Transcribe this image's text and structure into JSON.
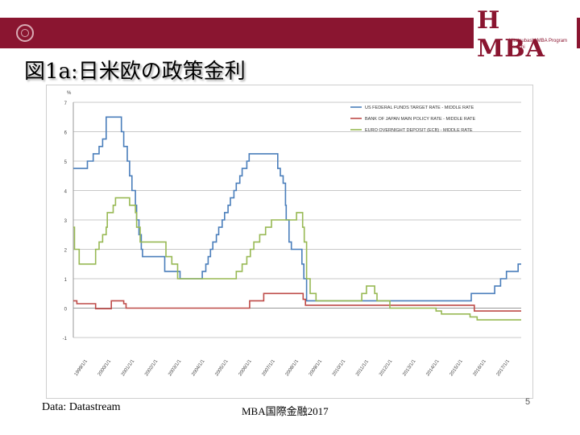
{
  "header": {
    "logo_main": "H MBA",
    "logo_sub1": "Hitotsubashi MBA Program",
    "logo_sub2": "Kenichi",
    "accent_color": "#8a1530"
  },
  "slide": {
    "title": "図1a:日米欧の政策金利"
  },
  "footer": {
    "source": "Data: Datastream",
    "center": "MBA国際金融2017",
    "page": "5"
  },
  "chart_data": {
    "type": "line",
    "ylabel": "%",
    "ylim": [
      -1,
      7
    ],
    "yticks": [
      -1,
      0,
      1,
      2,
      3,
      4,
      5,
      6,
      7
    ],
    "xlim": [
      1999,
      2018.1
    ],
    "xticks": [
      "1999/1/1",
      "2000/1/1",
      "2001/1/1",
      "2002/1/1",
      "2003/1/1",
      "2004/1/1",
      "2005/1/1",
      "2006/1/1",
      "2007/1/1",
      "2008/1/1",
      "2009/1/1",
      "2010/1/1",
      "2011/1/1",
      "2012/1/1",
      "2013/1/1",
      "2014/1/1",
      "2015/1/1",
      "2016/1/1",
      "2017/1/1"
    ],
    "grid": true,
    "legend_position": "top-right",
    "series": [
      {
        "name": "US FEDERAL FUNDS TARGET RATE - MIDDLE RATE",
        "color": "#4a7ebb",
        "points": [
          [
            1999.0,
            4.75
          ],
          [
            1999.5,
            4.75
          ],
          [
            1999.6,
            5.0
          ],
          [
            1999.85,
            5.25
          ],
          [
            2000.1,
            5.5
          ],
          [
            2000.25,
            5.75
          ],
          [
            2000.4,
            6.5
          ],
          [
            2001.0,
            6.5
          ],
          [
            2001.05,
            6.0
          ],
          [
            2001.15,
            5.5
          ],
          [
            2001.3,
            5.0
          ],
          [
            2001.4,
            4.5
          ],
          [
            2001.5,
            4.0
          ],
          [
            2001.65,
            3.5
          ],
          [
            2001.7,
            3.0
          ],
          [
            2001.8,
            2.5
          ],
          [
            2001.9,
            2.0
          ],
          [
            2001.95,
            1.75
          ],
          [
            2002.85,
            1.75
          ],
          [
            2002.9,
            1.25
          ],
          [
            2003.5,
            1.25
          ],
          [
            2003.55,
            1.0
          ],
          [
            2004.45,
            1.0
          ],
          [
            2004.5,
            1.25
          ],
          [
            2004.65,
            1.5
          ],
          [
            2004.75,
            1.75
          ],
          [
            2004.85,
            2.0
          ],
          [
            2004.95,
            2.25
          ],
          [
            2005.1,
            2.5
          ],
          [
            2005.2,
            2.75
          ],
          [
            2005.35,
            3.0
          ],
          [
            2005.45,
            3.25
          ],
          [
            2005.6,
            3.5
          ],
          [
            2005.7,
            3.75
          ],
          [
            2005.85,
            4.0
          ],
          [
            2005.95,
            4.25
          ],
          [
            2006.1,
            4.5
          ],
          [
            2006.2,
            4.75
          ],
          [
            2006.4,
            5.0
          ],
          [
            2006.5,
            5.25
          ],
          [
            2007.7,
            5.25
          ],
          [
            2007.72,
            4.75
          ],
          [
            2007.83,
            4.5
          ],
          [
            2007.95,
            4.25
          ],
          [
            2008.05,
            3.5
          ],
          [
            2008.08,
            3.0
          ],
          [
            2008.2,
            2.25
          ],
          [
            2008.3,
            2.0
          ],
          [
            2008.75,
            1.5
          ],
          [
            2008.83,
            1.0
          ],
          [
            2008.95,
            0.25
          ],
          [
            2015.95,
            0.25
          ],
          [
            2015.97,
            0.5
          ],
          [
            2016.95,
            0.5
          ],
          [
            2016.97,
            0.75
          ],
          [
            2017.2,
            0.75
          ],
          [
            2017.22,
            1.0
          ],
          [
            2017.45,
            1.0
          ],
          [
            2017.47,
            1.25
          ],
          [
            2017.95,
            1.25
          ],
          [
            2017.97,
            1.5
          ],
          [
            2018.1,
            1.5
          ]
        ]
      },
      {
        "name": "BANK OF JAPAN MAIN POLICY RATE - MIDDLE RATE",
        "color": "#be4b48",
        "points": [
          [
            1999.0,
            0.25
          ],
          [
            1999.15,
            0.15
          ],
          [
            1999.9,
            0.15
          ],
          [
            1999.95,
            -0.02
          ],
          [
            2000.6,
            -0.02
          ],
          [
            2000.62,
            0.25
          ],
          [
            2001.1,
            0.25
          ],
          [
            2001.15,
            0.15
          ],
          [
            2001.25,
            0.0
          ],
          [
            2006.5,
            0.0
          ],
          [
            2006.52,
            0.25
          ],
          [
            2007.1,
            0.25
          ],
          [
            2007.12,
            0.5
          ],
          [
            2008.75,
            0.5
          ],
          [
            2008.8,
            0.3
          ],
          [
            2008.9,
            0.1
          ],
          [
            2016.0,
            0.1
          ],
          [
            2016.1,
            -0.1
          ],
          [
            2018.1,
            -0.1
          ]
        ]
      },
      {
        "name": "EURO OVERNIGHT DEPOSIT (ECB) - MIDDLE RATE",
        "color": "#98b954",
        "points": [
          [
            1999.0,
            2.75
          ],
          [
            1999.05,
            2.0
          ],
          [
            1999.25,
            1.5
          ],
          [
            1999.9,
            1.5
          ],
          [
            1999.95,
            2.0
          ],
          [
            2000.1,
            2.25
          ],
          [
            2000.25,
            2.5
          ],
          [
            2000.4,
            2.75
          ],
          [
            2000.45,
            3.25
          ],
          [
            2000.7,
            3.5
          ],
          [
            2000.8,
            3.75
          ],
          [
            2001.35,
            3.75
          ],
          [
            2001.4,
            3.5
          ],
          [
            2001.65,
            3.25
          ],
          [
            2001.7,
            2.75
          ],
          [
            2001.85,
            2.25
          ],
          [
            2002.9,
            2.25
          ],
          [
            2002.95,
            1.75
          ],
          [
            2003.2,
            1.5
          ],
          [
            2003.45,
            1.0
          ],
          [
            2005.9,
            1.0
          ],
          [
            2005.95,
            1.25
          ],
          [
            2006.2,
            1.5
          ],
          [
            2006.4,
            1.75
          ],
          [
            2006.55,
            2.0
          ],
          [
            2006.7,
            2.25
          ],
          [
            2006.95,
            2.5
          ],
          [
            2007.2,
            2.75
          ],
          [
            2007.45,
            3.0
          ],
          [
            2008.5,
            3.0
          ],
          [
            2008.52,
            3.25
          ],
          [
            2008.75,
            3.25
          ],
          [
            2008.78,
            2.75
          ],
          [
            2008.85,
            2.25
          ],
          [
            2008.95,
            1.0
          ],
          [
            2009.1,
            0.5
          ],
          [
            2009.35,
            0.25
          ],
          [
            2011.25,
            0.25
          ],
          [
            2011.3,
            0.5
          ],
          [
            2011.5,
            0.75
          ],
          [
            2011.85,
            0.5
          ],
          [
            2011.95,
            0.25
          ],
          [
            2012.5,
            0.0
          ],
          [
            2014.45,
            0.0
          ],
          [
            2014.47,
            -0.1
          ],
          [
            2014.7,
            -0.2
          ],
          [
            2015.9,
            -0.2
          ],
          [
            2015.92,
            -0.3
          ],
          [
            2016.2,
            -0.3
          ],
          [
            2016.22,
            -0.4
          ],
          [
            2018.1,
            -0.4
          ]
        ]
      }
    ]
  }
}
